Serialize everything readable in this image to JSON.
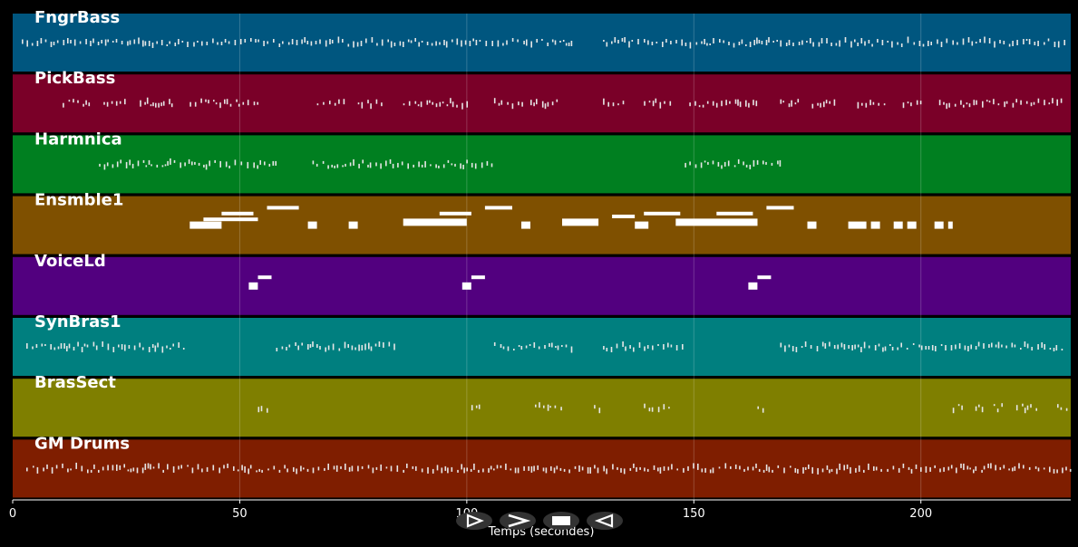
{
  "chart_data": {
    "type": "piano-roll",
    "x_label": "Temps (secondes)",
    "xlim": [
      0,
      233
    ],
    "x_ticks": [
      0,
      50,
      100,
      150,
      200
    ],
    "tracks": [
      {
        "name": "FngrBass",
        "color": "#00567f",
        "note_style": "ticks",
        "segments": [
          [
            2,
            123
          ],
          [
            130,
            232
          ]
        ]
      },
      {
        "name": "PickBass",
        "color": "#7a0028",
        "note_style": "ticks",
        "segments": [
          [
            11,
            17
          ],
          [
            20,
            25
          ],
          [
            28,
            35
          ],
          [
            39,
            54
          ],
          [
            67,
            73
          ],
          [
            76,
            82
          ],
          [
            86,
            100
          ],
          [
            106,
            113
          ],
          [
            114,
            120
          ],
          [
            130,
            135
          ],
          [
            139,
            145
          ],
          [
            149,
            164
          ],
          [
            169,
            173
          ],
          [
            176,
            181
          ],
          [
            186,
            192
          ],
          [
            196,
            201
          ],
          [
            204,
            232
          ]
        ]
      },
      {
        "name": "Harmnica",
        "color": "#007f20",
        "note_style": "ticks",
        "segments": [
          [
            19,
            58
          ],
          [
            66,
            106
          ],
          [
            148,
            169
          ]
        ]
      },
      {
        "name": "Ensmble1",
        "color": "#7f5000",
        "note_style": "blocks",
        "blocks": [
          [
            39,
            46,
            0.5
          ],
          [
            42,
            54,
            0.4
          ],
          [
            46,
            53,
            0.3
          ],
          [
            56,
            63,
            0.2
          ],
          [
            65,
            67,
            0.5
          ],
          [
            74,
            76,
            0.5
          ],
          [
            86,
            100,
            0.45
          ],
          [
            94,
            101,
            0.3
          ],
          [
            104,
            110,
            0.2
          ],
          [
            112,
            114,
            0.5
          ],
          [
            121,
            129,
            0.45
          ],
          [
            132,
            137,
            0.35
          ],
          [
            137,
            140,
            0.5
          ],
          [
            139,
            147,
            0.3
          ],
          [
            146,
            164,
            0.45
          ],
          [
            155,
            163,
            0.3
          ],
          [
            166,
            172,
            0.2
          ],
          [
            175,
            177,
            0.5
          ],
          [
            184,
            188,
            0.5
          ],
          [
            189,
            191,
            0.5
          ],
          [
            194,
            196,
            0.5
          ],
          [
            197,
            199,
            0.5
          ],
          [
            203,
            205,
            0.5
          ],
          [
            206,
            207,
            0.5
          ]
        ]
      },
      {
        "name": "VoiceLd",
        "color": "#52007f",
        "note_style": "blocks",
        "blocks": [
          [
            52,
            54,
            0.5
          ],
          [
            54,
            57,
            0.35
          ],
          [
            99,
            101,
            0.5
          ],
          [
            101,
            104,
            0.35
          ],
          [
            162,
            164,
            0.5
          ],
          [
            164,
            167,
            0.35
          ]
        ]
      },
      {
        "name": "SynBras1",
        "color": "#007f7f",
        "note_style": "ticks",
        "segments": [
          [
            3,
            38
          ],
          [
            58,
            85
          ],
          [
            106,
            123
          ],
          [
            130,
            148
          ],
          [
            169,
            232
          ]
        ]
      },
      {
        "name": "BrasSect",
        "color": "#7f7f00",
        "note_style": "ticks",
        "segments": [
          [
            54,
            56
          ],
          [
            101,
            103
          ],
          [
            115,
            121
          ],
          [
            128,
            130
          ],
          [
            139,
            145
          ],
          [
            164,
            166
          ],
          [
            207,
            209
          ],
          [
            212,
            214
          ],
          [
            216,
            218
          ],
          [
            221,
            226
          ],
          [
            230,
            232
          ]
        ]
      },
      {
        "name": "GM Drums",
        "color": "#7f1e00",
        "note_style": "ticks",
        "segments": [
          [
            3,
            233
          ]
        ]
      }
    ]
  },
  "controls": [
    {
      "name": "play-button",
      "icon": "play-outline-icon"
    },
    {
      "name": "next-button",
      "icon": "chevron-right-icon"
    },
    {
      "name": "stop-button",
      "icon": "stop-icon"
    },
    {
      "name": "rewind-button",
      "icon": "rewind-icon"
    }
  ]
}
